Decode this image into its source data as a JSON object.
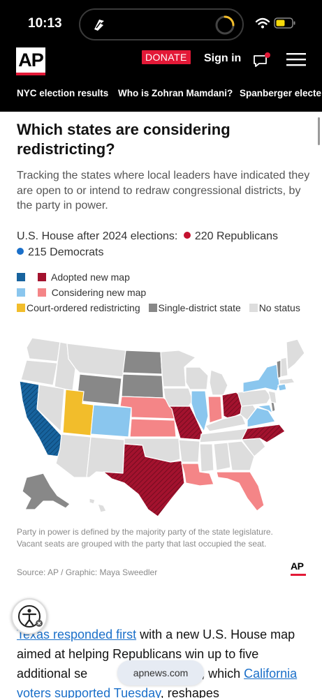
{
  "status_bar": {
    "time": "10:13",
    "icons": [
      "app-activity-icon",
      "loading-ring-icon",
      "wifi-icon",
      "battery-icon"
    ]
  },
  "header": {
    "logo_text": "AP",
    "donate_label": "DONATE",
    "sign_in_label": "Sign in",
    "nav_links": [
      "NYC election results",
      "Who is Zohran Mamdani?",
      "Spanberger electe"
    ]
  },
  "article": {
    "headline": "Which states are considering redistricting?",
    "dek": "Tracking the states where local leaders have indicated they are open to or intend to redraw congressional districts, by the party in power.",
    "house_label": "U.S. House after 2024 elections:",
    "republicans_label": "220 Republicans",
    "democrats_label": "215 Democrats",
    "legend": {
      "adopted": "Adopted new map",
      "considering": "Considering new map",
      "court": "Court-ordered redistricting",
      "single": "Single-district state",
      "none": "No status"
    },
    "map_note": "Party in power is defined by the majority party of the state legislature. Vacant seats are grouped with the party that last occupied the seat.",
    "source": "Source: AP / Graphic: Maya Sweedler",
    "ap_mark": "AP",
    "body": {
      "link1": "Texas responded first",
      "text1": " with a new U.S. House map aimed at helping Republicans win up to five additional se",
      "text2": "n 50, which ",
      "link2": "California voters supported Tuesday",
      "text3": ", reshapes"
    }
  },
  "browser": {
    "url": "apnews.com"
  },
  "colors": {
    "dem_dark": "#17639e",
    "dem_light": "#8ac6ee",
    "rep_dark": "#a3122e",
    "rep_light": "#f48587",
    "court": "#f2bd2b",
    "single": "#888888",
    "none": "#dddddd",
    "accent": "#e31937"
  }
}
